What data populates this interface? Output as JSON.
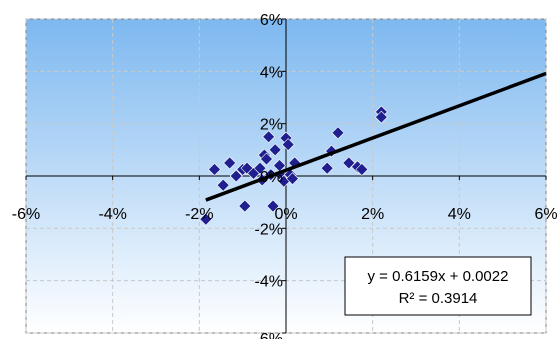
{
  "chart_data": {
    "type": "scatter",
    "xlim": [
      -0.06,
      0.06
    ],
    "ylim": [
      -0.06,
      0.06
    ],
    "x_ticks": [
      -0.06,
      -0.04,
      -0.02,
      0.0,
      0.02,
      0.04,
      0.06
    ],
    "y_ticks": [
      -0.06,
      -0.04,
      -0.02,
      0.0,
      0.02,
      0.04,
      0.06
    ],
    "x_tick_labels": [
      "-6%",
      "-4%",
      "-2%",
      "0%",
      "2%",
      "4%",
      "6%"
    ],
    "y_tick_labels": [
      "-6%",
      "-4%",
      "-2%",
      "0%",
      "2%",
      "4%",
      "6%"
    ],
    "grid": true,
    "marker": "diamond",
    "marker_color": "#1f1f8f",
    "trendline_color": "#000000",
    "background_gradient": [
      "#7db8f0",
      "#ffffff"
    ],
    "points": [
      {
        "x": -0.0185,
        "y": -0.0165
      },
      {
        "x": -0.0165,
        "y": 0.0025
      },
      {
        "x": -0.0145,
        "y": -0.0035
      },
      {
        "x": -0.013,
        "y": 0.005
      },
      {
        "x": -0.0115,
        "y": 0.0
      },
      {
        "x": -0.01,
        "y": 0.0025
      },
      {
        "x": -0.0095,
        "y": -0.0115
      },
      {
        "x": -0.009,
        "y": 0.003
      },
      {
        "x": -0.0075,
        "y": 0.001
      },
      {
        "x": -0.006,
        "y": 0.003
      },
      {
        "x": -0.0055,
        "y": -0.0015
      },
      {
        "x": -0.005,
        "y": 0.008
      },
      {
        "x": -0.0045,
        "y": 0.0065
      },
      {
        "x": -0.004,
        "y": 0.015
      },
      {
        "x": -0.0035,
        "y": 0.0005
      },
      {
        "x": -0.003,
        "y": -0.0115
      },
      {
        "x": -0.0025,
        "y": 0.01
      },
      {
        "x": -0.0015,
        "y": 0.004
      },
      {
        "x": -0.001,
        "y": 0.0
      },
      {
        "x": -0.0005,
        "y": -0.002
      },
      {
        "x": 0.0,
        "y": 0.0145
      },
      {
        "x": 0.0005,
        "y": 0.012
      },
      {
        "x": 0.001,
        "y": 0.0005
      },
      {
        "x": 0.0015,
        "y": -0.001
      },
      {
        "x": 0.002,
        "y": 0.005
      },
      {
        "x": 0.0095,
        "y": 0.003
      },
      {
        "x": 0.0105,
        "y": 0.0095
      },
      {
        "x": 0.012,
        "y": 0.0165
      },
      {
        "x": 0.0145,
        "y": 0.005
      },
      {
        "x": 0.0165,
        "y": 0.0035
      },
      {
        "x": 0.0175,
        "y": 0.0025
      },
      {
        "x": 0.022,
        "y": 0.0245
      },
      {
        "x": 0.022,
        "y": 0.0225
      }
    ],
    "trendline": {
      "slope": 0.6159,
      "intercept": 0.0022,
      "x_range": [
        -0.0185,
        0.06
      ],
      "equation_label": "y = 0.6159x + 0.0022",
      "r2_label": "R² = 0.3914"
    }
  }
}
